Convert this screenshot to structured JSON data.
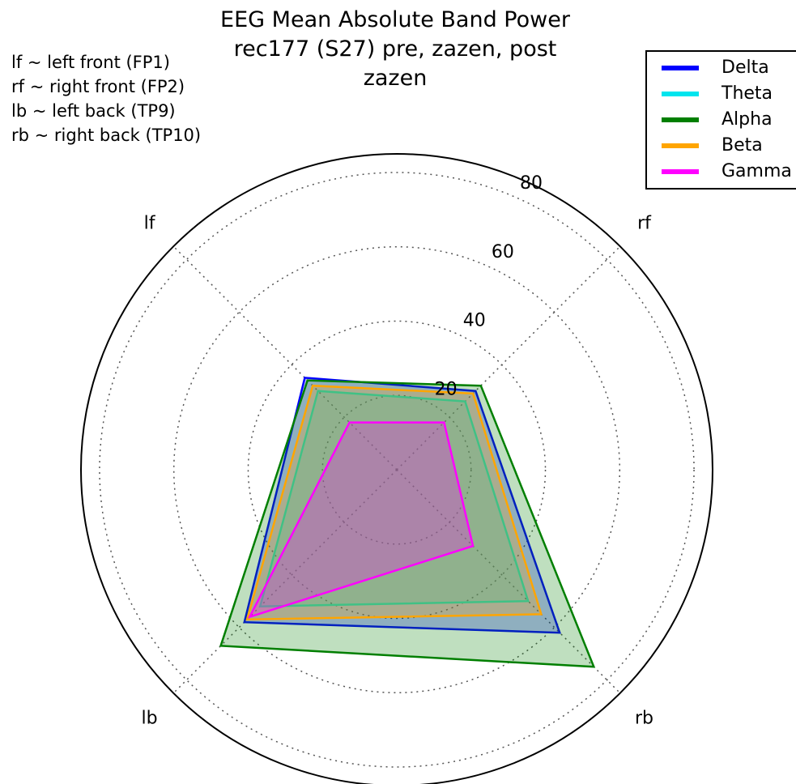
{
  "chart_data": {
    "type": "radar",
    "title_lines": [
      "EEG Mean Absolute Band Power",
      "rec177 (S27) pre, zazen, post",
      "zazen"
    ],
    "notes": [
      "lf ~ left front (FP1)",
      "rf ~ right front (FP2)",
      "lb ~ left back (TP9)",
      "rb ~ right back (TP10)"
    ],
    "axes": [
      "rf",
      "lf",
      "lb",
      "rb"
    ],
    "r_ticks": [
      20,
      40,
      60,
      80
    ],
    "r_max": 85,
    "grid": true,
    "legend_position": "top-right",
    "series": [
      {
        "name": "Delta",
        "color": "#0000ff",
        "values": [
          30,
          35,
          58,
          62
        ]
      },
      {
        "name": "Theta",
        "color": "#00e5ee",
        "values": [
          26,
          30,
          52,
          50
        ]
      },
      {
        "name": "Alpha",
        "color": "#007f00",
        "values": [
          32,
          34,
          67,
          75
        ]
      },
      {
        "name": "Beta",
        "color": "#ffa500",
        "values": [
          29,
          32,
          57,
          55
        ]
      },
      {
        "name": "Gamma",
        "color": "#ff00ff",
        "values": [
          18,
          18,
          56,
          29
        ]
      }
    ]
  }
}
